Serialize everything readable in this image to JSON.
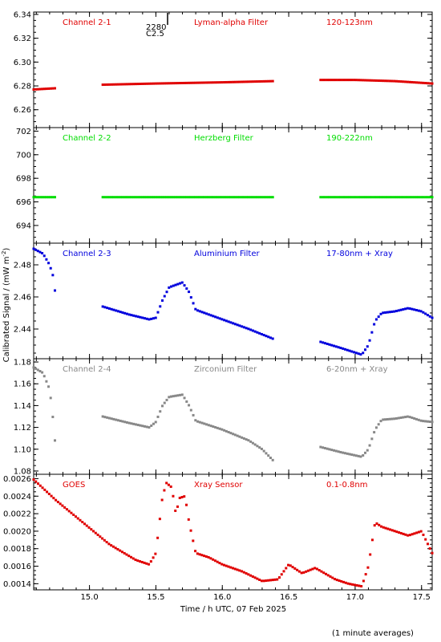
{
  "ylabel": "Calibrated Signal / (mW m",
  "ylabel_sup": "-2",
  "ylabel_end": ")",
  "xlabel": "Time / h UTC, 07 Feb 2025",
  "footnote": "(1 minute averages)",
  "flare_marker": {
    "line1": "2280",
    "line2": "C2.5"
  },
  "chart_data": [
    {
      "type": "scatter",
      "channel": "Channel 2-1",
      "filter": "Lyman-alpha Filter",
      "band": "120-123nm",
      "color": "#e00000",
      "xlim": [
        14.58,
        17.58
      ],
      "ylim": [
        6.245,
        6.342
      ],
      "yticks": [
        "6.26",
        "6.28",
        "6.30",
        "6.32",
        "6.34"
      ],
      "segments": [
        {
          "x": [
            14.58,
            14.74
          ],
          "y": [
            6.277,
            6.278
          ]
        },
        {
          "x": [
            15.1,
            15.5,
            16.0,
            16.38
          ],
          "y": [
            6.281,
            6.282,
            6.283,
            6.284
          ]
        },
        {
          "x": [
            16.74,
            17.0,
            17.3,
            17.58
          ],
          "y": [
            6.285,
            6.285,
            6.284,
            6.282
          ]
        }
      ]
    },
    {
      "type": "scatter",
      "channel": "Channel 2-2",
      "filter": "Herzberg Filter",
      "band": "190-222nm",
      "color": "#00dd00",
      "xlim": [
        14.58,
        17.58
      ],
      "ylim": [
        692.5,
        702.3
      ],
      "yticks": [
        "694",
        "696",
        "698",
        "700",
        "702"
      ],
      "segments": [
        {
          "x": [
            14.58,
            14.74
          ],
          "y": [
            696.4,
            696.4
          ]
        },
        {
          "x": [
            15.1,
            16.38
          ],
          "y": [
            696.4,
            696.4
          ]
        },
        {
          "x": [
            16.74,
            17.58
          ],
          "y": [
            696.4,
            696.4
          ]
        }
      ]
    },
    {
      "type": "scatter",
      "channel": "Channel 2-3",
      "filter": "Aluminium Filter",
      "band": "17-80nm + Xray",
      "color": "#0000dd",
      "xlim": [
        14.58,
        17.58
      ],
      "ylim": [
        2.4215,
        2.4935
      ],
      "yticks": [
        "2.44",
        "2.46",
        "2.48"
      ],
      "segments": [
        {
          "x": [
            14.58,
            14.65,
            14.7,
            14.73,
            14.74
          ],
          "y": [
            2.49,
            2.487,
            2.48,
            2.472,
            2.464
          ]
        },
        {
          "x": [
            15.1,
            15.3,
            15.45,
            15.5,
            15.55,
            15.6,
            15.7,
            15.75,
            15.8,
            16.0,
            16.2,
            16.38
          ],
          "y": [
            2.454,
            2.449,
            2.446,
            2.447,
            2.458,
            2.466,
            2.469,
            2.463,
            2.452,
            2.446,
            2.44,
            2.434
          ]
        },
        {
          "x": [
            16.74,
            16.9,
            17.05,
            17.1,
            17.15,
            17.2,
            17.3,
            17.4,
            17.5,
            17.58
          ],
          "y": [
            2.432,
            2.428,
            2.424,
            2.43,
            2.445,
            2.45,
            2.451,
            2.453,
            2.451,
            2.447
          ]
        }
      ]
    },
    {
      "type": "scatter",
      "channel": "Channel 2-4",
      "filter": "Zirconium Filter",
      "band": "6-20nm + Xray",
      "color": "#888888",
      "xlim": [
        14.58,
        17.58
      ],
      "ylim": [
        1.077,
        1.183
      ],
      "yticks": [
        "1.08",
        "1.10",
        "1.12",
        "1.14",
        "1.16",
        "1.18"
      ],
      "segments": [
        {
          "x": [
            14.58,
            14.65,
            14.7,
            14.72,
            14.74
          ],
          "y": [
            1.175,
            1.17,
            1.155,
            1.135,
            1.108
          ]
        },
        {
          "x": [
            15.1,
            15.3,
            15.45,
            15.5,
            15.55,
            15.6,
            15.7,
            15.75,
            15.8,
            16.0,
            16.2,
            16.3,
            16.38
          ],
          "y": [
            1.13,
            1.124,
            1.12,
            1.125,
            1.14,
            1.148,
            1.15,
            1.14,
            1.126,
            1.118,
            1.108,
            1.1,
            1.09
          ]
        },
        {
          "x": [
            16.74,
            16.9,
            17.05,
            17.1,
            17.15,
            17.2,
            17.3,
            17.4,
            17.5,
            17.58
          ],
          "y": [
            1.102,
            1.097,
            1.093,
            1.1,
            1.118,
            1.127,
            1.128,
            1.13,
            1.126,
            1.125
          ]
        }
      ]
    },
    {
      "type": "scatter",
      "channel": "GOES",
      "filter": "Xray Sensor",
      "band": "0.1-0.8nm",
      "color": "#e00000",
      "xlim": [
        14.58,
        17.58
      ],
      "ylim": [
        0.00133,
        0.00265
      ],
      "yticks": [
        "0.0014",
        "0.0016",
        "0.0018",
        "0.0020",
        "0.0022",
        "0.0024",
        "0.0026"
      ],
      "segments": [
        {
          "x": [
            14.58,
            14.75,
            14.95,
            15.15,
            15.35,
            15.45,
            15.5,
            15.55,
            15.58,
            15.62,
            15.65,
            15.68,
            15.72,
            15.75,
            15.8,
            15.9,
            16.0,
            16.15,
            16.3,
            16.42,
            16.5,
            16.6,
            16.7,
            16.85,
            16.95,
            17.05,
            17.1,
            17.15,
            17.2,
            17.3,
            17.4,
            17.5,
            17.58
          ],
          "y": [
            0.00259,
            0.00235,
            0.0021,
            0.00185,
            0.00167,
            0.00162,
            0.00175,
            0.0024,
            0.00255,
            0.0025,
            0.0022,
            0.00238,
            0.0024,
            0.0021,
            0.00175,
            0.0017,
            0.00162,
            0.00154,
            0.00143,
            0.00145,
            0.00162,
            0.00152,
            0.00158,
            0.00145,
            0.0014,
            0.00137,
            0.0016,
            0.0021,
            0.00205,
            0.002,
            0.00195,
            0.002,
            0.00175
          ]
        }
      ]
    }
  ],
  "xticks": [
    "15.0",
    "15.5",
    "16.0",
    "16.5",
    "17.0",
    "17.5"
  ],
  "xtick_values": [
    15.0,
    15.5,
    16.0,
    16.5,
    17.0,
    17.5
  ]
}
